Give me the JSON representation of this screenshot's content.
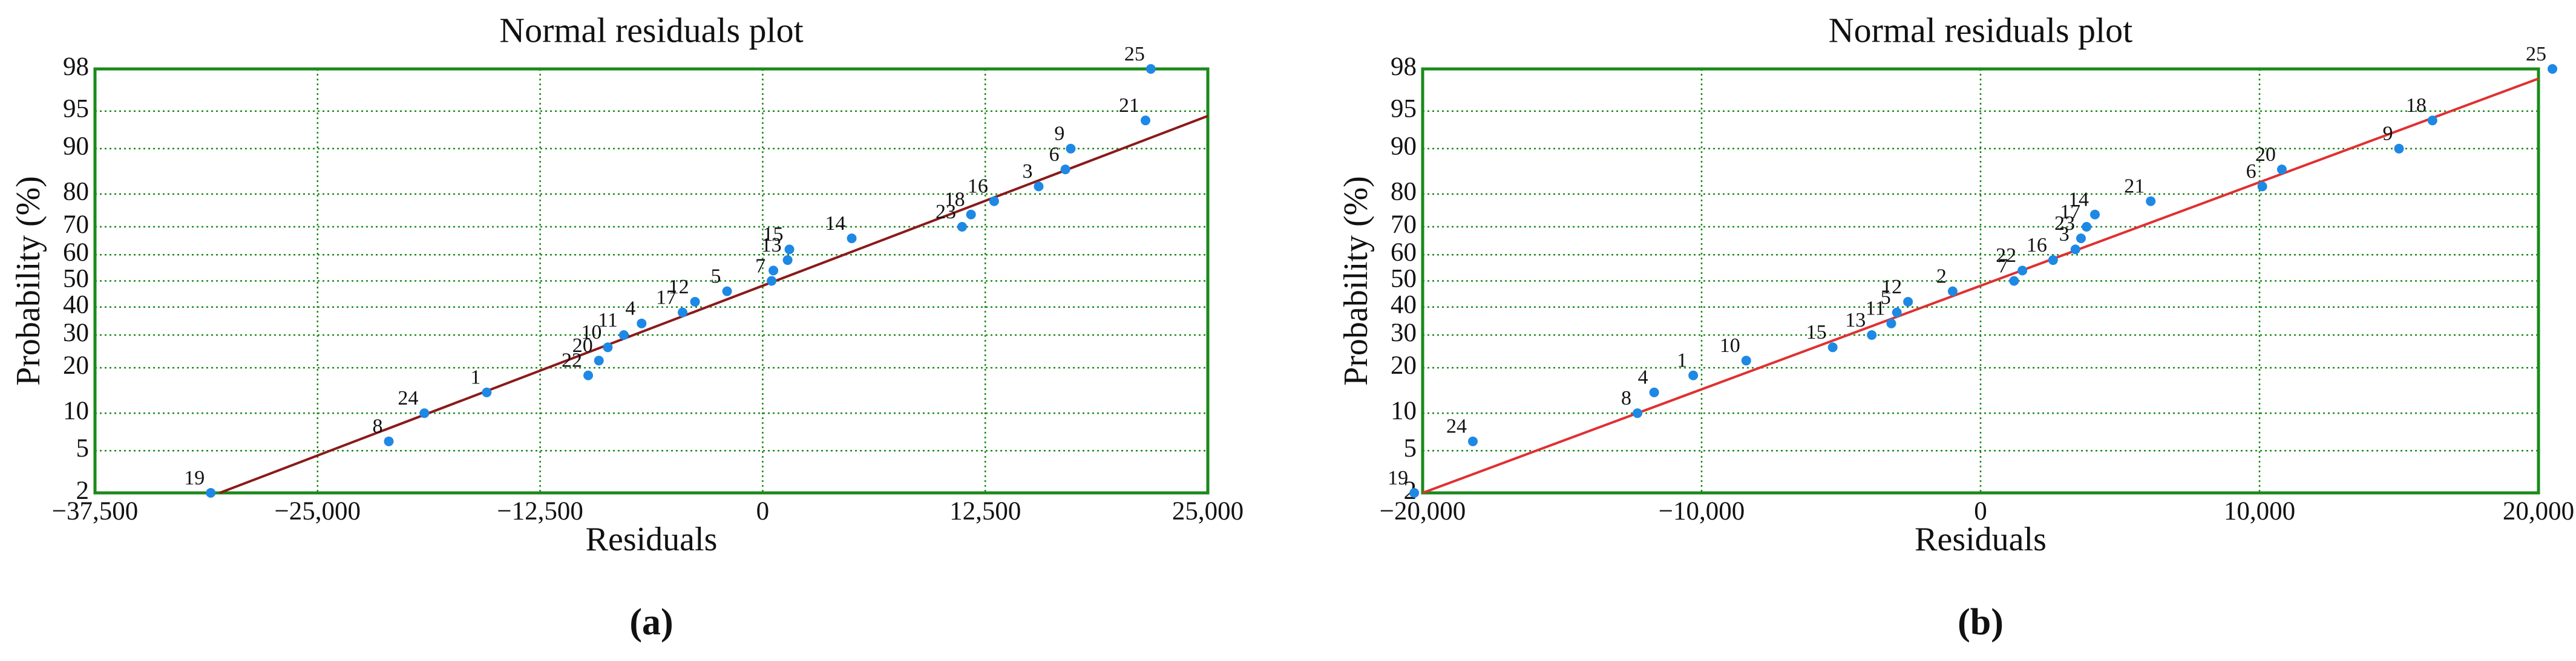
{
  "chart_data": [
    {
      "type": "scatter",
      "scale": "normal-probability",
      "title": "Normal residuals plot",
      "xlabel": "Residuals",
      "ylabel": "Probability (%)",
      "caption": "(a)",
      "xlim": [
        -37500,
        25000
      ],
      "xticks": [
        {
          "value": -37500,
          "label": "−37,500"
        },
        {
          "value": -25000,
          "label": "−25,000"
        },
        {
          "value": -12500,
          "label": "−12,500"
        },
        0,
        {
          "value": 12500,
          "label": "12,500"
        },
        {
          "value": 25000,
          "label": "25,000"
        }
      ],
      "ylim": [
        2,
        98
      ],
      "yticks": [
        2,
        5,
        10,
        20,
        30,
        40,
        50,
        60,
        70,
        80,
        90,
        95,
        98
      ],
      "grid": true,
      "color": "#1e88e5",
      "x": [
        -31000,
        -21000,
        -19000,
        -15500,
        -9800,
        -9200,
        -8700,
        -7800,
        -6800,
        -4500,
        -3800,
        -2000,
        500,
        600,
        1400,
        1500,
        5000,
        11200,
        11700,
        13000,
        15500,
        17000,
        17300,
        21500,
        21800
      ],
      "values": [
        2,
        6,
        10,
        14,
        18,
        22,
        26,
        30,
        34,
        38,
        42,
        46,
        50,
        54,
        58,
        62,
        66,
        70,
        74,
        78,
        82,
        86,
        90,
        94,
        98
      ],
      "point_labels": [
        "19",
        "8",
        "24",
        "1",
        "22",
        "20",
        "10",
        "11",
        "4",
        "17",
        "12",
        "5",
        "7",
        null,
        "13",
        "15",
        "14",
        "23",
        "18",
        "16",
        "3",
        "6",
        "9",
        "21",
        "25"
      ],
      "fit_line": {
        "x": [
          -30500,
          25000
        ],
        "y": [
          2,
          94.5
        ],
        "color": "#8b1a1a"
      }
    },
    {
      "type": "scatter",
      "scale": "normal-probability",
      "title": "Normal residuals plot",
      "xlabel": "Residuals",
      "ylabel": "Probability (%)",
      "caption": "(b)",
      "xlim": [
        -20000,
        20000
      ],
      "xticks": [
        {
          "value": -20000,
          "label": "−20,000"
        },
        {
          "value": -10000,
          "label": "−10,000"
        },
        0,
        {
          "value": 10000,
          "label": "10,000"
        },
        {
          "value": 20000,
          "label": "20,000"
        }
      ],
      "ylim": [
        2,
        98
      ],
      "yticks": [
        2,
        5,
        10,
        20,
        30,
        40,
        50,
        60,
        70,
        80,
        90,
        95,
        98
      ],
      "grid": true,
      "color": "#1e88e5",
      "x": [
        -20300,
        -18200,
        -12300,
        -11700,
        -10300,
        -8400,
        -5300,
        -3900,
        -3200,
        -3000,
        -2600,
        -1000,
        1200,
        1500,
        2600,
        3400,
        3600,
        3800,
        4100,
        6100,
        10100,
        10800,
        15000,
        16200,
        20500
      ],
      "values": [
        2,
        6,
        10,
        14,
        18,
        22,
        26,
        30,
        34,
        38,
        42,
        46,
        50,
        54,
        58,
        62,
        66,
        70,
        74,
        78,
        82,
        86,
        90,
        94,
        98
      ],
      "point_labels": [
        "19",
        "24",
        "8",
        "4",
        "1",
        "10",
        "15",
        "13",
        "11",
        "5",
        "12",
        "2",
        "7",
        "22",
        "16",
        "3",
        "23",
        "17",
        "14",
        "21",
        "6",
        "20",
        "9",
        "18",
        "25"
      ],
      "fit_line": {
        "x": [
          -20000,
          20000
        ],
        "y": [
          2,
          97.5
        ],
        "color": "#e03030"
      }
    }
  ]
}
